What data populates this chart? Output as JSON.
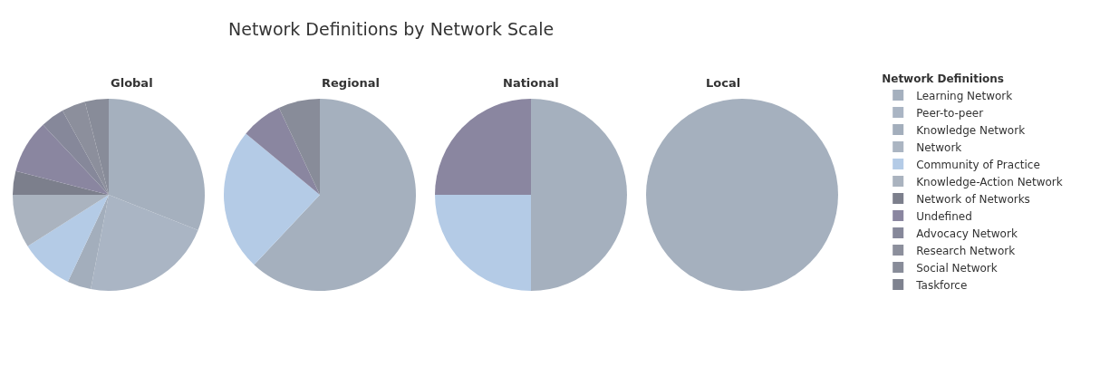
{
  "chart_data": {
    "type": "pie",
    "title": "Network Definitions by Network Scale",
    "legend": "right",
    "legend_title": "Network Definitions",
    "categories": [
      "Learning Network",
      "Peer-to-peer",
      "Knowledge Network",
      "Network",
      "Community of Practice",
      "Knowledge-Action Network",
      "Network of Networks",
      "Undefined",
      "Advocacy Network",
      "Research Network",
      "Social Network",
      "Taskforce"
    ],
    "colors": [
      "#a5b0be",
      "#aab5c4",
      "#a3aebc",
      "#abb5c2",
      "#b4cbe6",
      "#aab3bf",
      "#7c7f8c",
      "#8a86a0",
      "#86889a",
      "#8c8f9c",
      "#888c99",
      "#7e828f"
    ],
    "series": [
      {
        "name": "Global",
        "values": [
          31,
          22,
          4,
          0,
          9,
          9,
          4,
          9,
          4,
          4,
          4,
          0
        ]
      },
      {
        "name": "Regional",
        "values": [
          62,
          0,
          0,
          0,
          24,
          0,
          0,
          7,
          0,
          0,
          7,
          0
        ]
      },
      {
        "name": "National",
        "values": [
          50,
          0,
          0,
          0,
          25,
          0,
          0,
          25,
          0,
          0,
          0,
          0
        ]
      },
      {
        "name": "Local",
        "values": [
          100,
          0,
          0,
          0,
          0,
          0,
          0,
          0,
          0,
          0,
          0,
          0
        ]
      }
    ]
  }
}
